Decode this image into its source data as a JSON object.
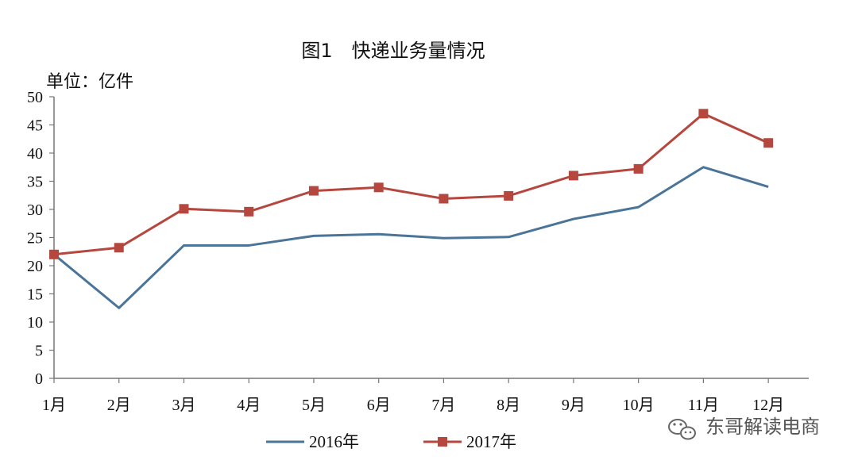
{
  "chart_data": {
    "type": "line",
    "title": "图1　快递业务量情况",
    "unit_label": "单位：亿件",
    "categories": [
      "1月",
      "2月",
      "3月",
      "4月",
      "5月",
      "6月",
      "7月",
      "8月",
      "9月",
      "10月",
      "11月",
      "12月"
    ],
    "ylim": [
      0,
      50
    ],
    "yticks": [
      0,
      5,
      10,
      15,
      20,
      25,
      30,
      35,
      40,
      45,
      50
    ],
    "grid": false,
    "legend_position": "bottom",
    "series": [
      {
        "name": "2016年",
        "color": "#4a7498",
        "marker": "none",
        "values": [
          22.0,
          12.5,
          23.6,
          23.6,
          25.3,
          25.6,
          24.9,
          25.1,
          28.3,
          30.4,
          37.5,
          34.0
        ]
      },
      {
        "name": "2017年",
        "color": "#b5473f",
        "marker": "square",
        "values": [
          22.0,
          23.2,
          30.1,
          29.6,
          33.3,
          33.9,
          31.9,
          32.4,
          36.0,
          37.2,
          47.0,
          41.8
        ]
      }
    ]
  },
  "watermark": {
    "text": "东哥解读电商",
    "icon": "wechat-icon"
  }
}
